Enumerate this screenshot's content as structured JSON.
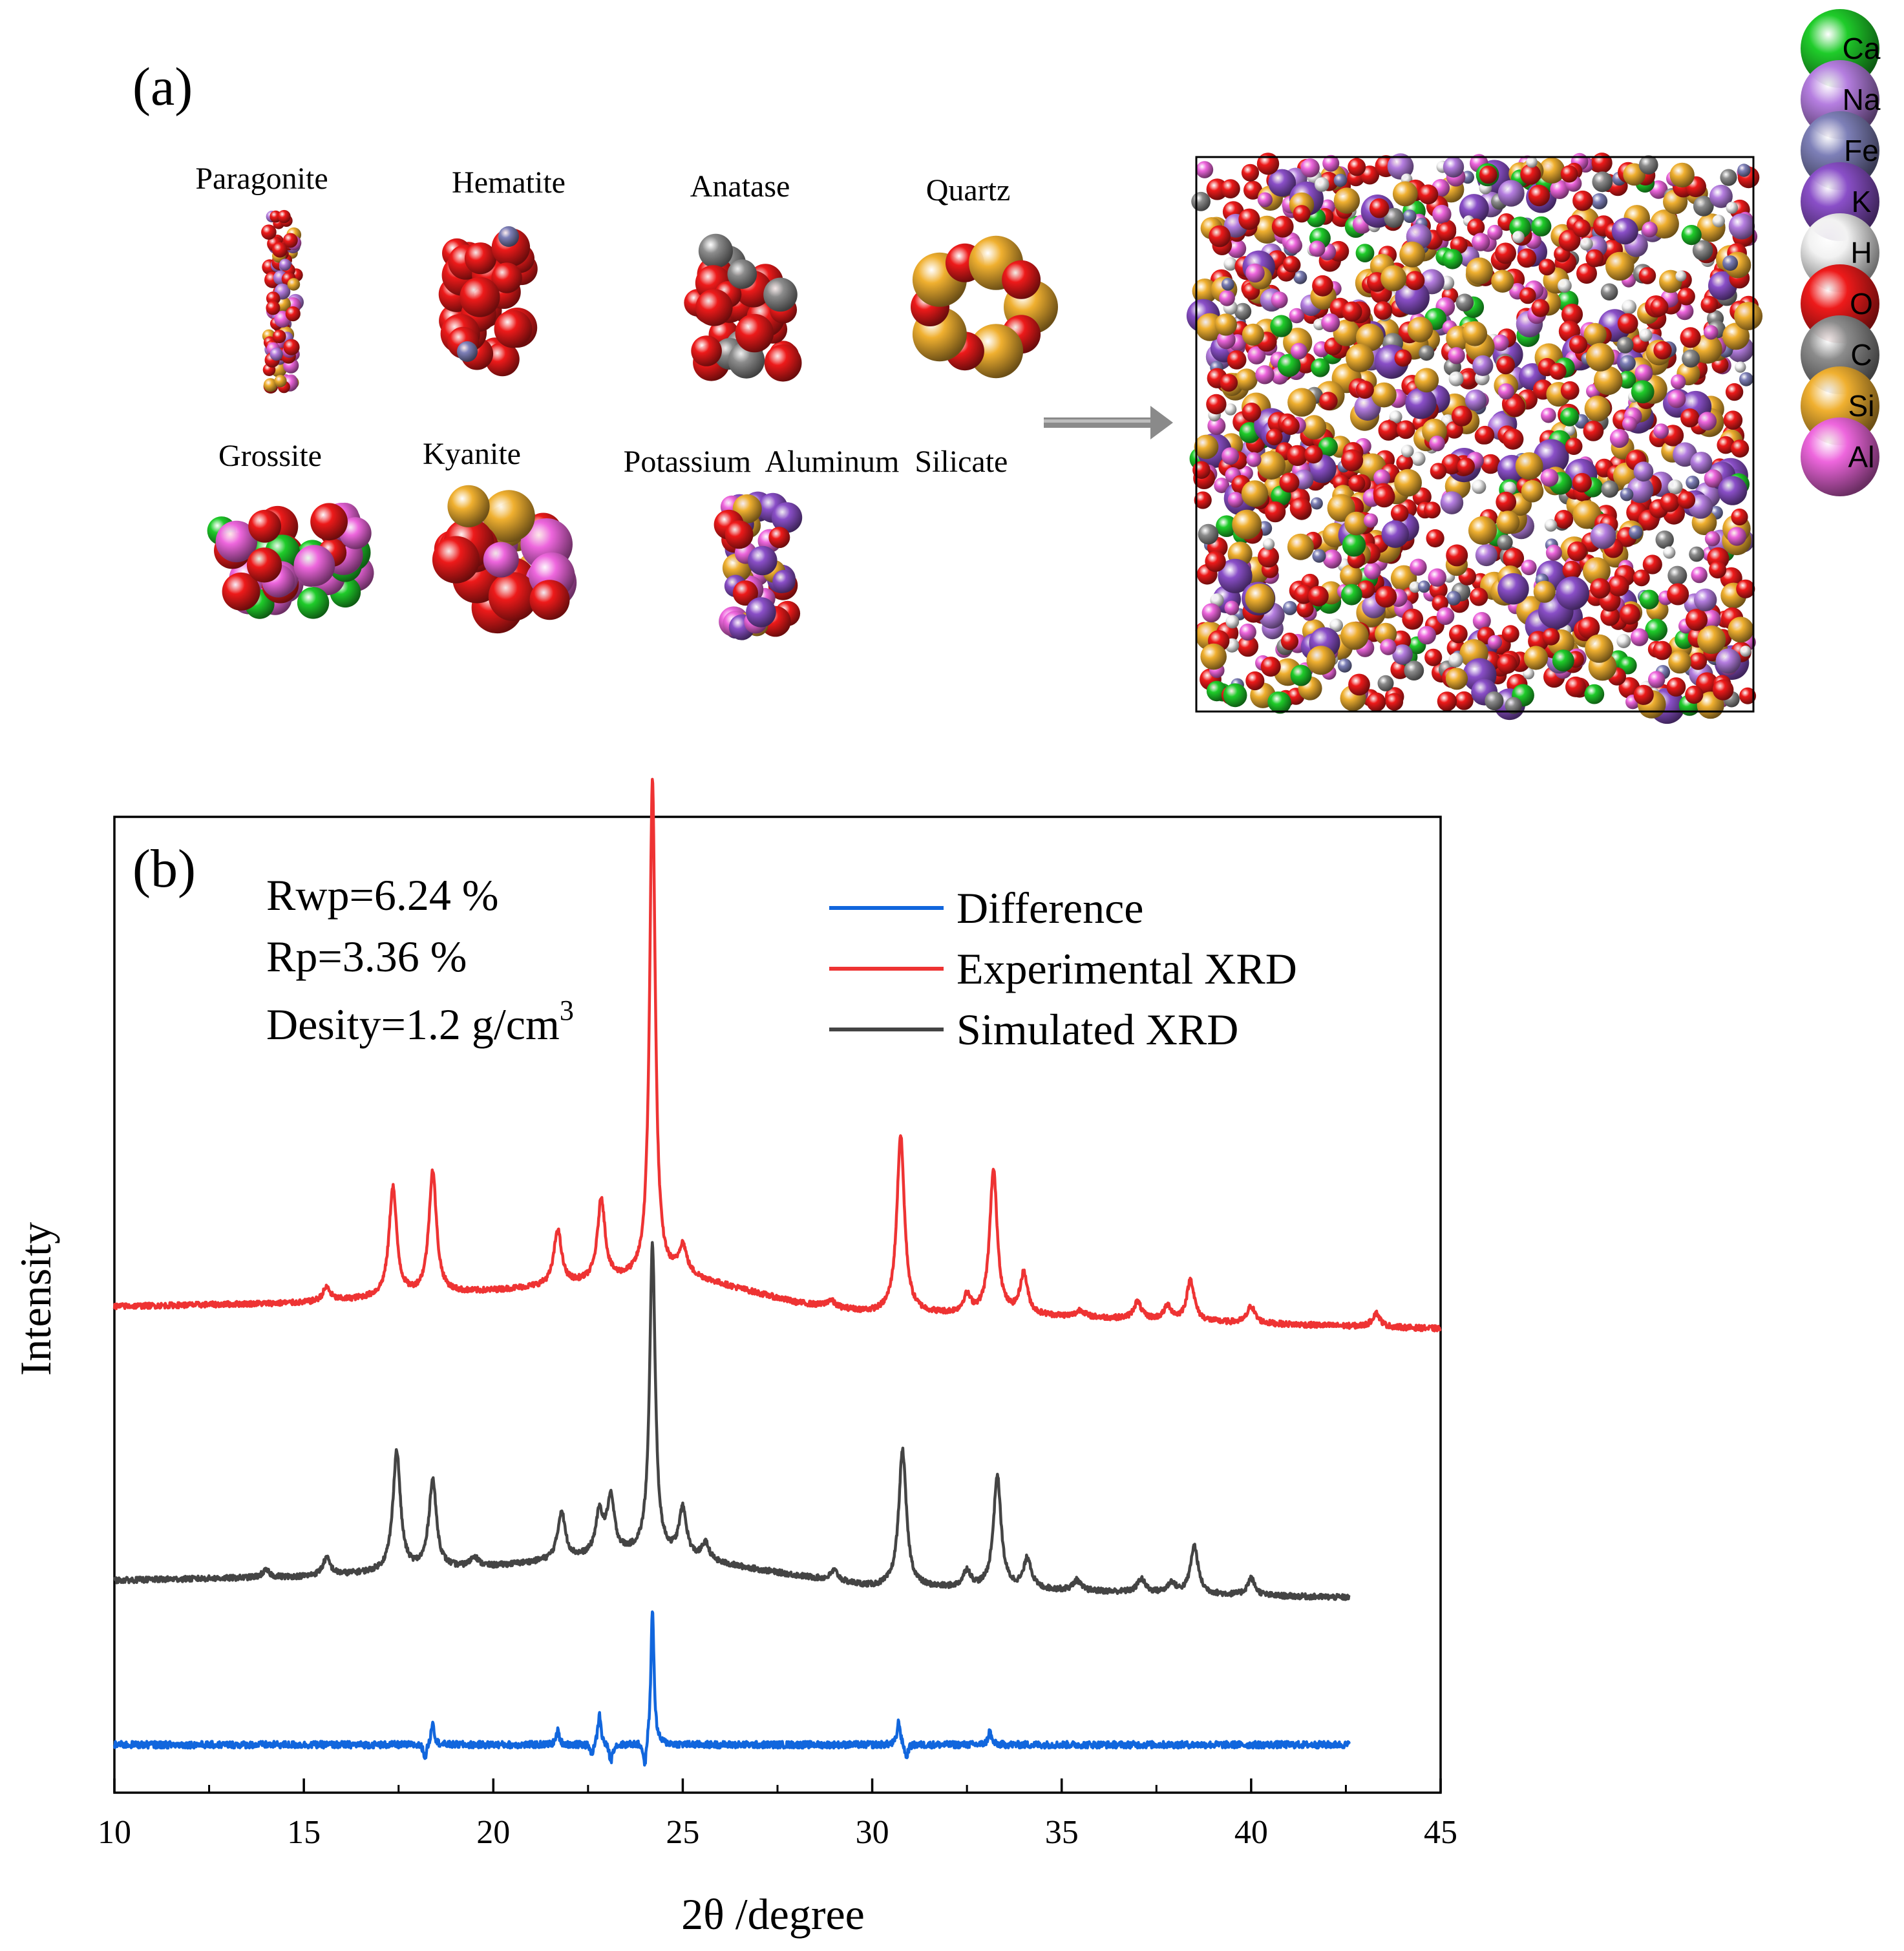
{
  "panel_a": {
    "label": "(a)",
    "minerals": [
      {
        "name": "Paragonite"
      },
      {
        "name": "Hematite"
      },
      {
        "name": "Anatase"
      },
      {
        "name": "Quartz"
      },
      {
        "name": "Grossite"
      },
      {
        "name": "Kyanite"
      },
      {
        "name": "Potassium  Aluminum  Silicate"
      }
    ],
    "arrow": "right-arrow",
    "element_legend": [
      {
        "symbol": "Ca",
        "color": "#1fcc2a"
      },
      {
        "symbol": "Na",
        "color": "#b57ee0"
      },
      {
        "symbol": "Fe",
        "color": "#7e80b8"
      },
      {
        "symbol": "K",
        "color": "#8a4fc8"
      },
      {
        "symbol": "H",
        "color": "#f2f2f2"
      },
      {
        "symbol": "O",
        "color": "#ee1a1a"
      },
      {
        "symbol": "C",
        "color": "#8c8c8c"
      },
      {
        "symbol": "Si",
        "color": "#f0b030"
      },
      {
        "symbol": "Al",
        "color": "#ee66dd"
      }
    ]
  },
  "panel_b": {
    "label": "(b)",
    "stats": [
      "Rwp=6.24 %",
      "Rp=3.36 %"
    ],
    "density_text": "Desity=1.2 g/cm",
    "density_sup": "3"
  },
  "chart_data": {
    "type": "line",
    "title": "",
    "xlabel": "2θ /degree",
    "ylabel": "Intensity",
    "xlim": [
      10,
      45
    ],
    "xticks": [
      10,
      15,
      20,
      25,
      30,
      35,
      40,
      45
    ],
    "y_ticks_shown": false,
    "legend_position": "top-right",
    "series": [
      {
        "name": "Difference",
        "color": "#1166dd",
        "x_end": 42.6,
        "baseline": 0.14,
        "peaks": [
          [
            18.4,
            0.07
          ],
          [
            21.7,
            0.04
          ],
          [
            22.8,
            0.09
          ],
          [
            24.2,
            0.4
          ],
          [
            30.7,
            0.07
          ],
          [
            33.1,
            0.04
          ]
        ],
        "dips": [
          [
            18.2,
            0.04
          ],
          [
            22.6,
            0.03
          ],
          [
            23.1,
            0.05
          ],
          [
            24.0,
            0.08
          ],
          [
            30.9,
            0.04
          ]
        ]
      },
      {
        "name": "Experimental XRD",
        "color": "#ee3333",
        "x_end": 45.0,
        "baseline_points": [
          [
            10,
            1.42
          ],
          [
            15,
            1.43
          ],
          [
            20,
            1.465
          ],
          [
            25,
            1.51
          ],
          [
            28,
            1.43
          ],
          [
            30,
            1.4
          ],
          [
            35,
            1.39
          ],
          [
            40,
            1.37
          ],
          [
            45,
            1.355
          ]
        ],
        "peaks": [
          [
            15.6,
            0.04
          ],
          [
            17.35,
            0.32
          ],
          [
            18.4,
            0.36
          ],
          [
            21.7,
            0.16
          ],
          [
            22.85,
            0.24
          ],
          [
            24.2,
            1.45
          ],
          [
            25.0,
            0.08
          ],
          [
            28.9,
            0.02
          ],
          [
            30.75,
            0.52
          ],
          [
            32.5,
            0.05
          ],
          [
            33.2,
            0.42
          ],
          [
            34.0,
            0.12
          ],
          [
            35.5,
            0.02
          ],
          [
            37.0,
            0.05
          ],
          [
            37.8,
            0.04
          ],
          [
            38.4,
            0.12
          ],
          [
            40.0,
            0.05
          ],
          [
            43.3,
            0.04
          ]
        ]
      },
      {
        "name": "Simulated XRD",
        "color": "#444444",
        "x_end": 42.6,
        "baseline_points": [
          [
            10,
            0.62
          ],
          [
            15,
            0.63
          ],
          [
            20,
            0.66
          ],
          [
            24,
            0.7
          ],
          [
            27,
            0.65
          ],
          [
            30,
            0.6
          ],
          [
            35,
            0.59
          ],
          [
            40,
            0.575
          ],
          [
            42.6,
            0.57
          ]
        ],
        "peaks": [
          [
            14.0,
            0.02
          ],
          [
            15.6,
            0.05
          ],
          [
            17.45,
            0.35
          ],
          [
            18.4,
            0.26
          ],
          [
            19.5,
            0.03
          ],
          [
            21.8,
            0.14
          ],
          [
            22.8,
            0.12
          ],
          [
            23.1,
            0.16
          ],
          [
            24.2,
            0.9
          ],
          [
            25.0,
            0.14
          ],
          [
            25.6,
            0.05
          ],
          [
            29.0,
            0.03
          ],
          [
            30.8,
            0.4
          ],
          [
            32.5,
            0.05
          ],
          [
            33.3,
            0.33
          ],
          [
            34.1,
            0.09
          ],
          [
            35.4,
            0.03
          ],
          [
            37.1,
            0.04
          ],
          [
            37.9,
            0.03
          ],
          [
            38.5,
            0.14
          ],
          [
            40.0,
            0.05
          ]
        ]
      }
    ]
  }
}
